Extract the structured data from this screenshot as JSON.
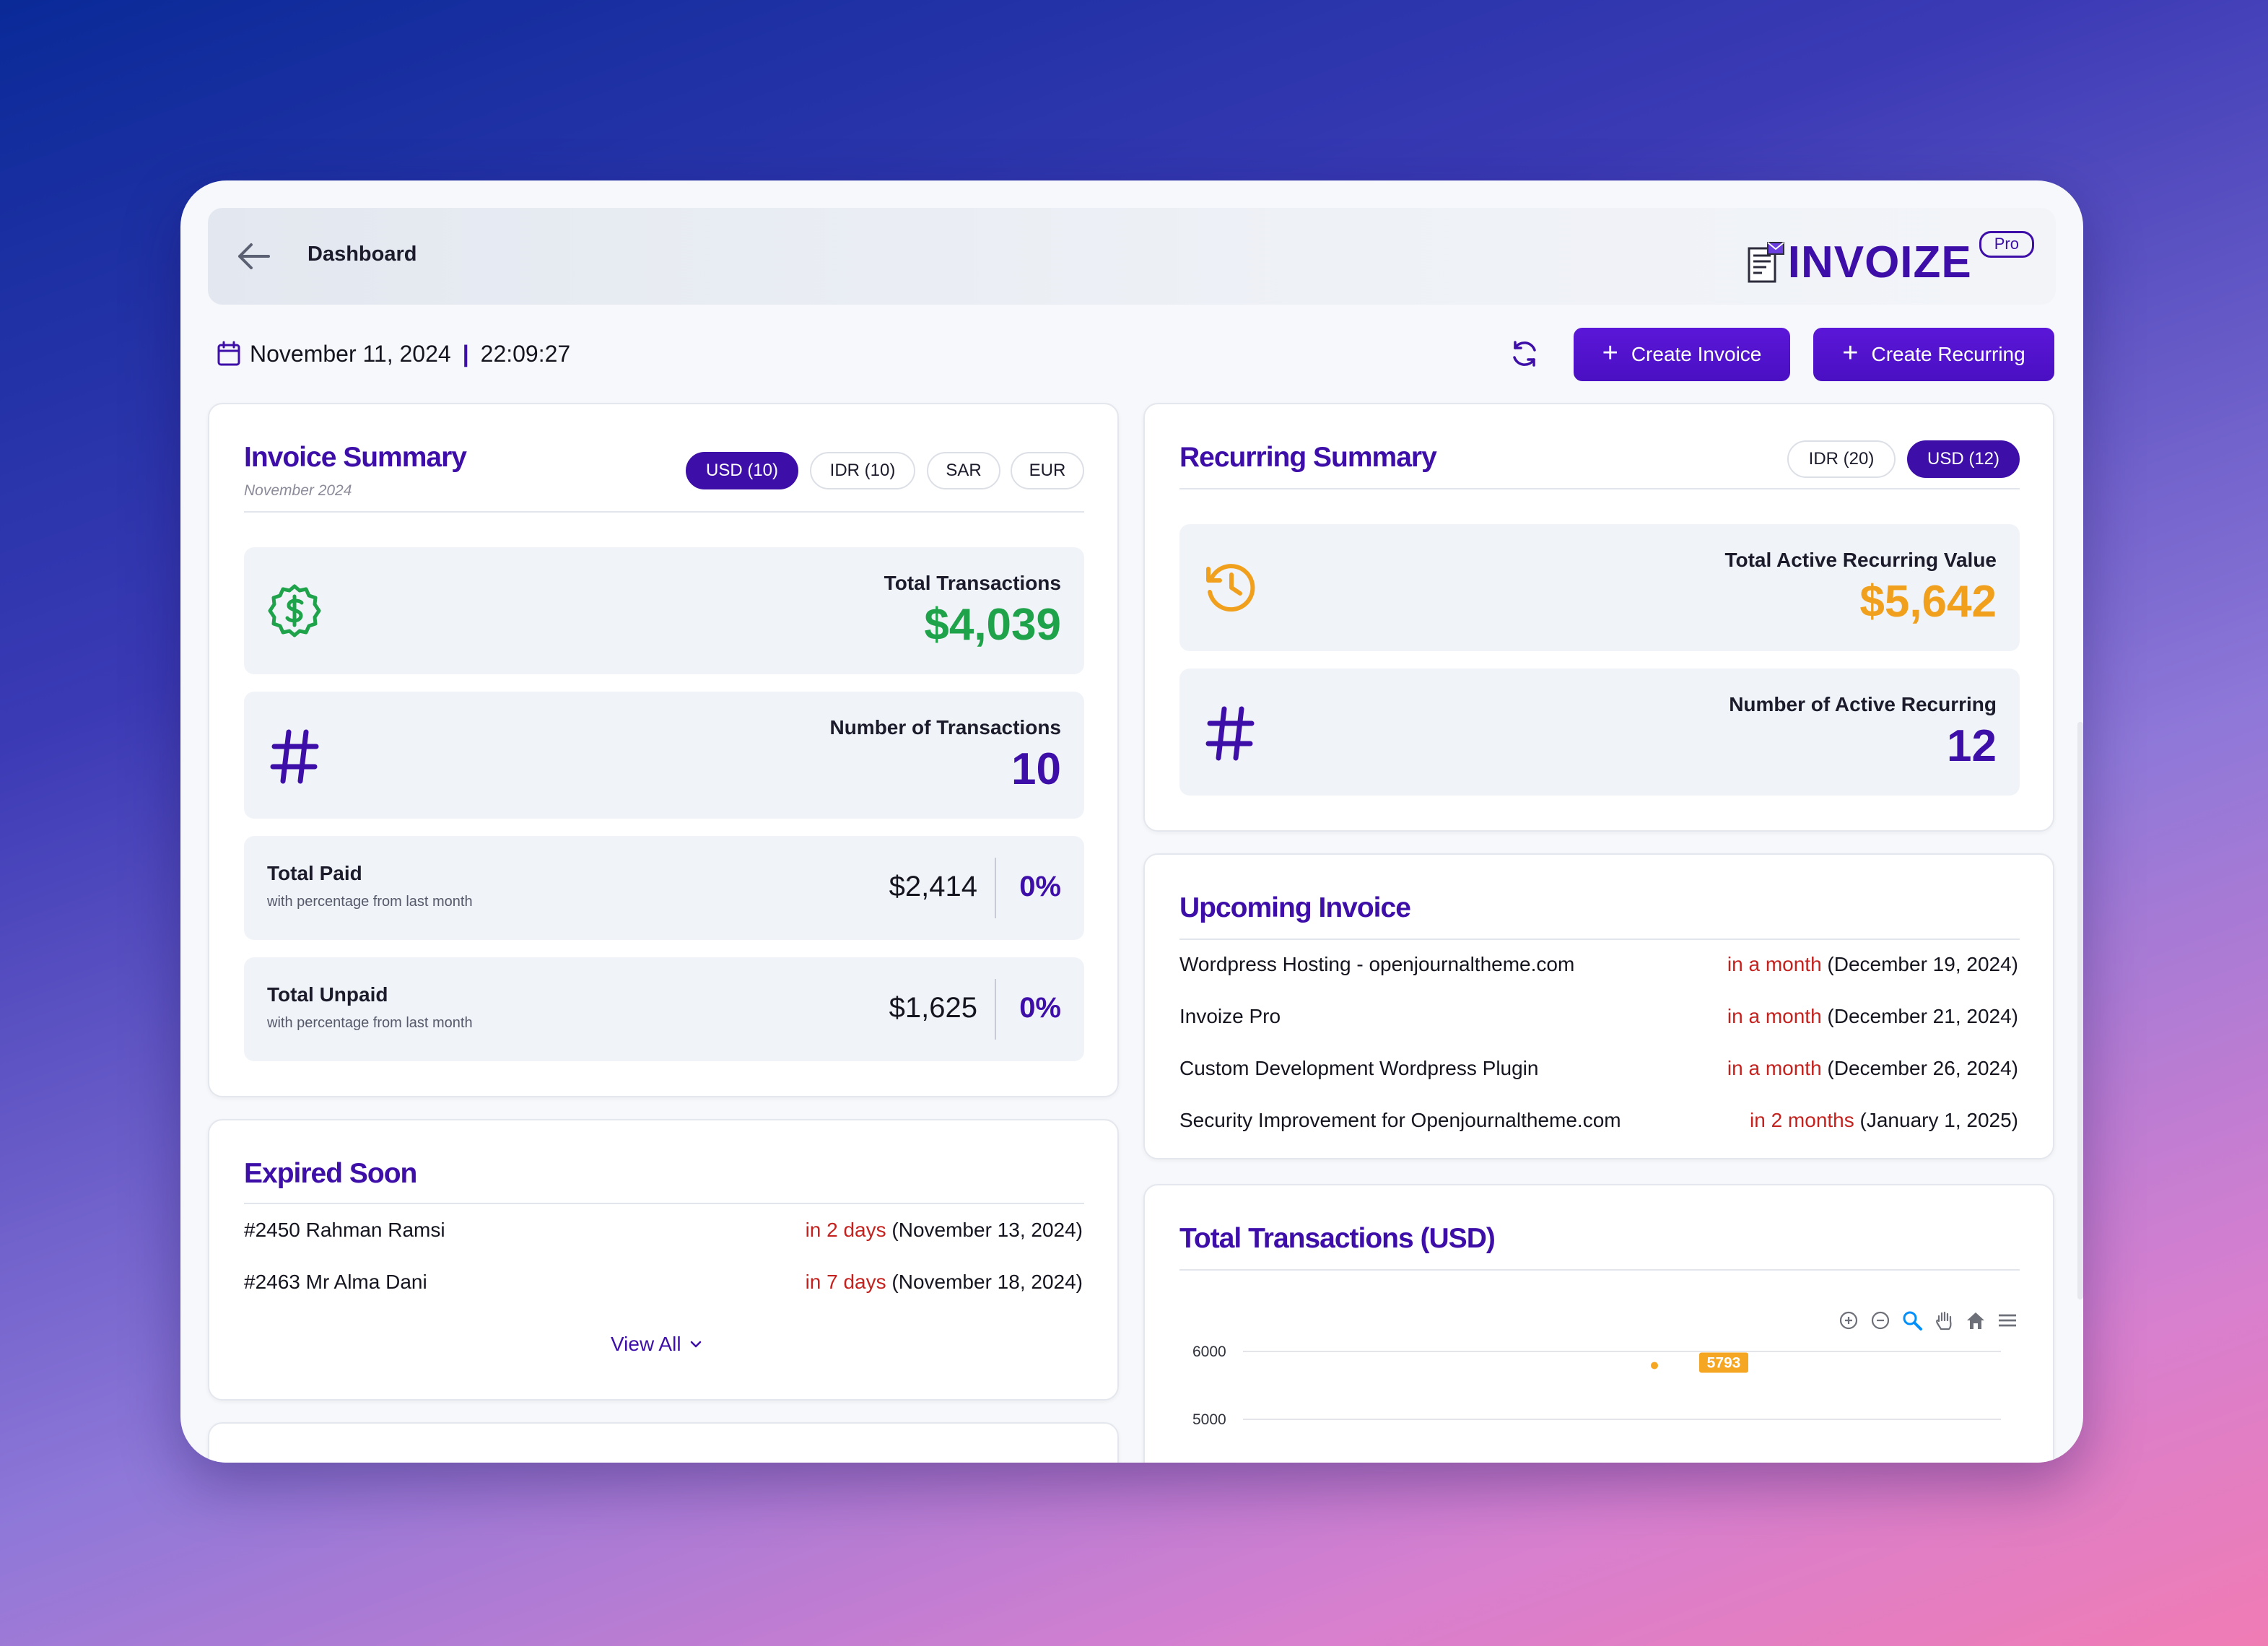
{
  "topbar": {
    "page_title": "Dashboard",
    "brand_name": "INVOIZE",
    "brand_badge": "Pro"
  },
  "datebar": {
    "date": "November 11, 2024",
    "separator": "|",
    "time": "22:09:27"
  },
  "actions": {
    "create_invoice": "Create Invoice",
    "create_recurring": "Create Recurring"
  },
  "invoice_summary": {
    "title": "Invoice Summary",
    "subtitle": "November 2024",
    "currencies": [
      "USD (10)",
      "IDR (10)",
      "SAR",
      "EUR"
    ],
    "selected_currency": "USD (10)",
    "total_transactions": {
      "label": "Total Transactions",
      "value": "$4,039"
    },
    "number_transactions": {
      "label": "Number of Transactions",
      "value": "10"
    },
    "total_paid": {
      "label": "Total Paid",
      "note": "with percentage from last month",
      "amount": "$2,414",
      "pct": "0%"
    },
    "total_unpaid": {
      "label": "Total Unpaid",
      "note": "with percentage from last month",
      "amount": "$1,625",
      "pct": "0%"
    }
  },
  "recurring_summary": {
    "title": "Recurring Summary",
    "currencies": [
      "IDR (20)",
      "USD (12)"
    ],
    "selected_currency": "USD (12)",
    "active_value": {
      "label": "Total Active Recurring Value",
      "value": "$5,642"
    },
    "active_count": {
      "label": "Number of Active Recurring",
      "value": "12"
    }
  },
  "upcoming_invoice": {
    "title": "Upcoming Invoice",
    "items": [
      {
        "name": "Wordpress Hosting - openjournaltheme.com",
        "relative": "in a month",
        "date": "(December 19, 2024)"
      },
      {
        "name": "Invoize Pro",
        "relative": "in a month",
        "date": "(December 21, 2024)"
      },
      {
        "name": "Custom Development Wordpress Plugin",
        "relative": "in a month",
        "date": "(December 26, 2024)"
      },
      {
        "name": "Security Improvement for Openjournaltheme.com",
        "relative": "in 2 months",
        "date": "(January 1, 2025)"
      }
    ]
  },
  "expired_soon": {
    "title": "Expired Soon",
    "items": [
      {
        "name": "#2450 Rahman Ramsi",
        "relative": "in 2 days",
        "date": "(November 13, 2024)"
      },
      {
        "name": "#2463 Mr Alma Dani",
        "relative": "in 7 days",
        "date": "(November 18, 2024)"
      }
    ],
    "view_all": "View All"
  },
  "total_transactions_chart": {
    "title": "Total Transactions (USD)",
    "toolbar_icons": [
      "zoom-in-icon",
      "zoom-out-icon",
      "zoom-select-icon",
      "pan-hand-icon",
      "home-reset-icon",
      "menu-icon"
    ]
  },
  "chart_data": {
    "type": "line",
    "title": "Total Transactions (USD)",
    "yticks": [
      "6000",
      "5000"
    ],
    "series": [
      {
        "values": [
          5793
        ]
      }
    ],
    "point_labels": [
      "5793"
    ],
    "accent_color": "#f5a623"
  },
  "colors": {
    "brand": "#3d0fa8",
    "green": "#1fa34a",
    "orange": "#f0a01c",
    "red": "#c4221f"
  }
}
